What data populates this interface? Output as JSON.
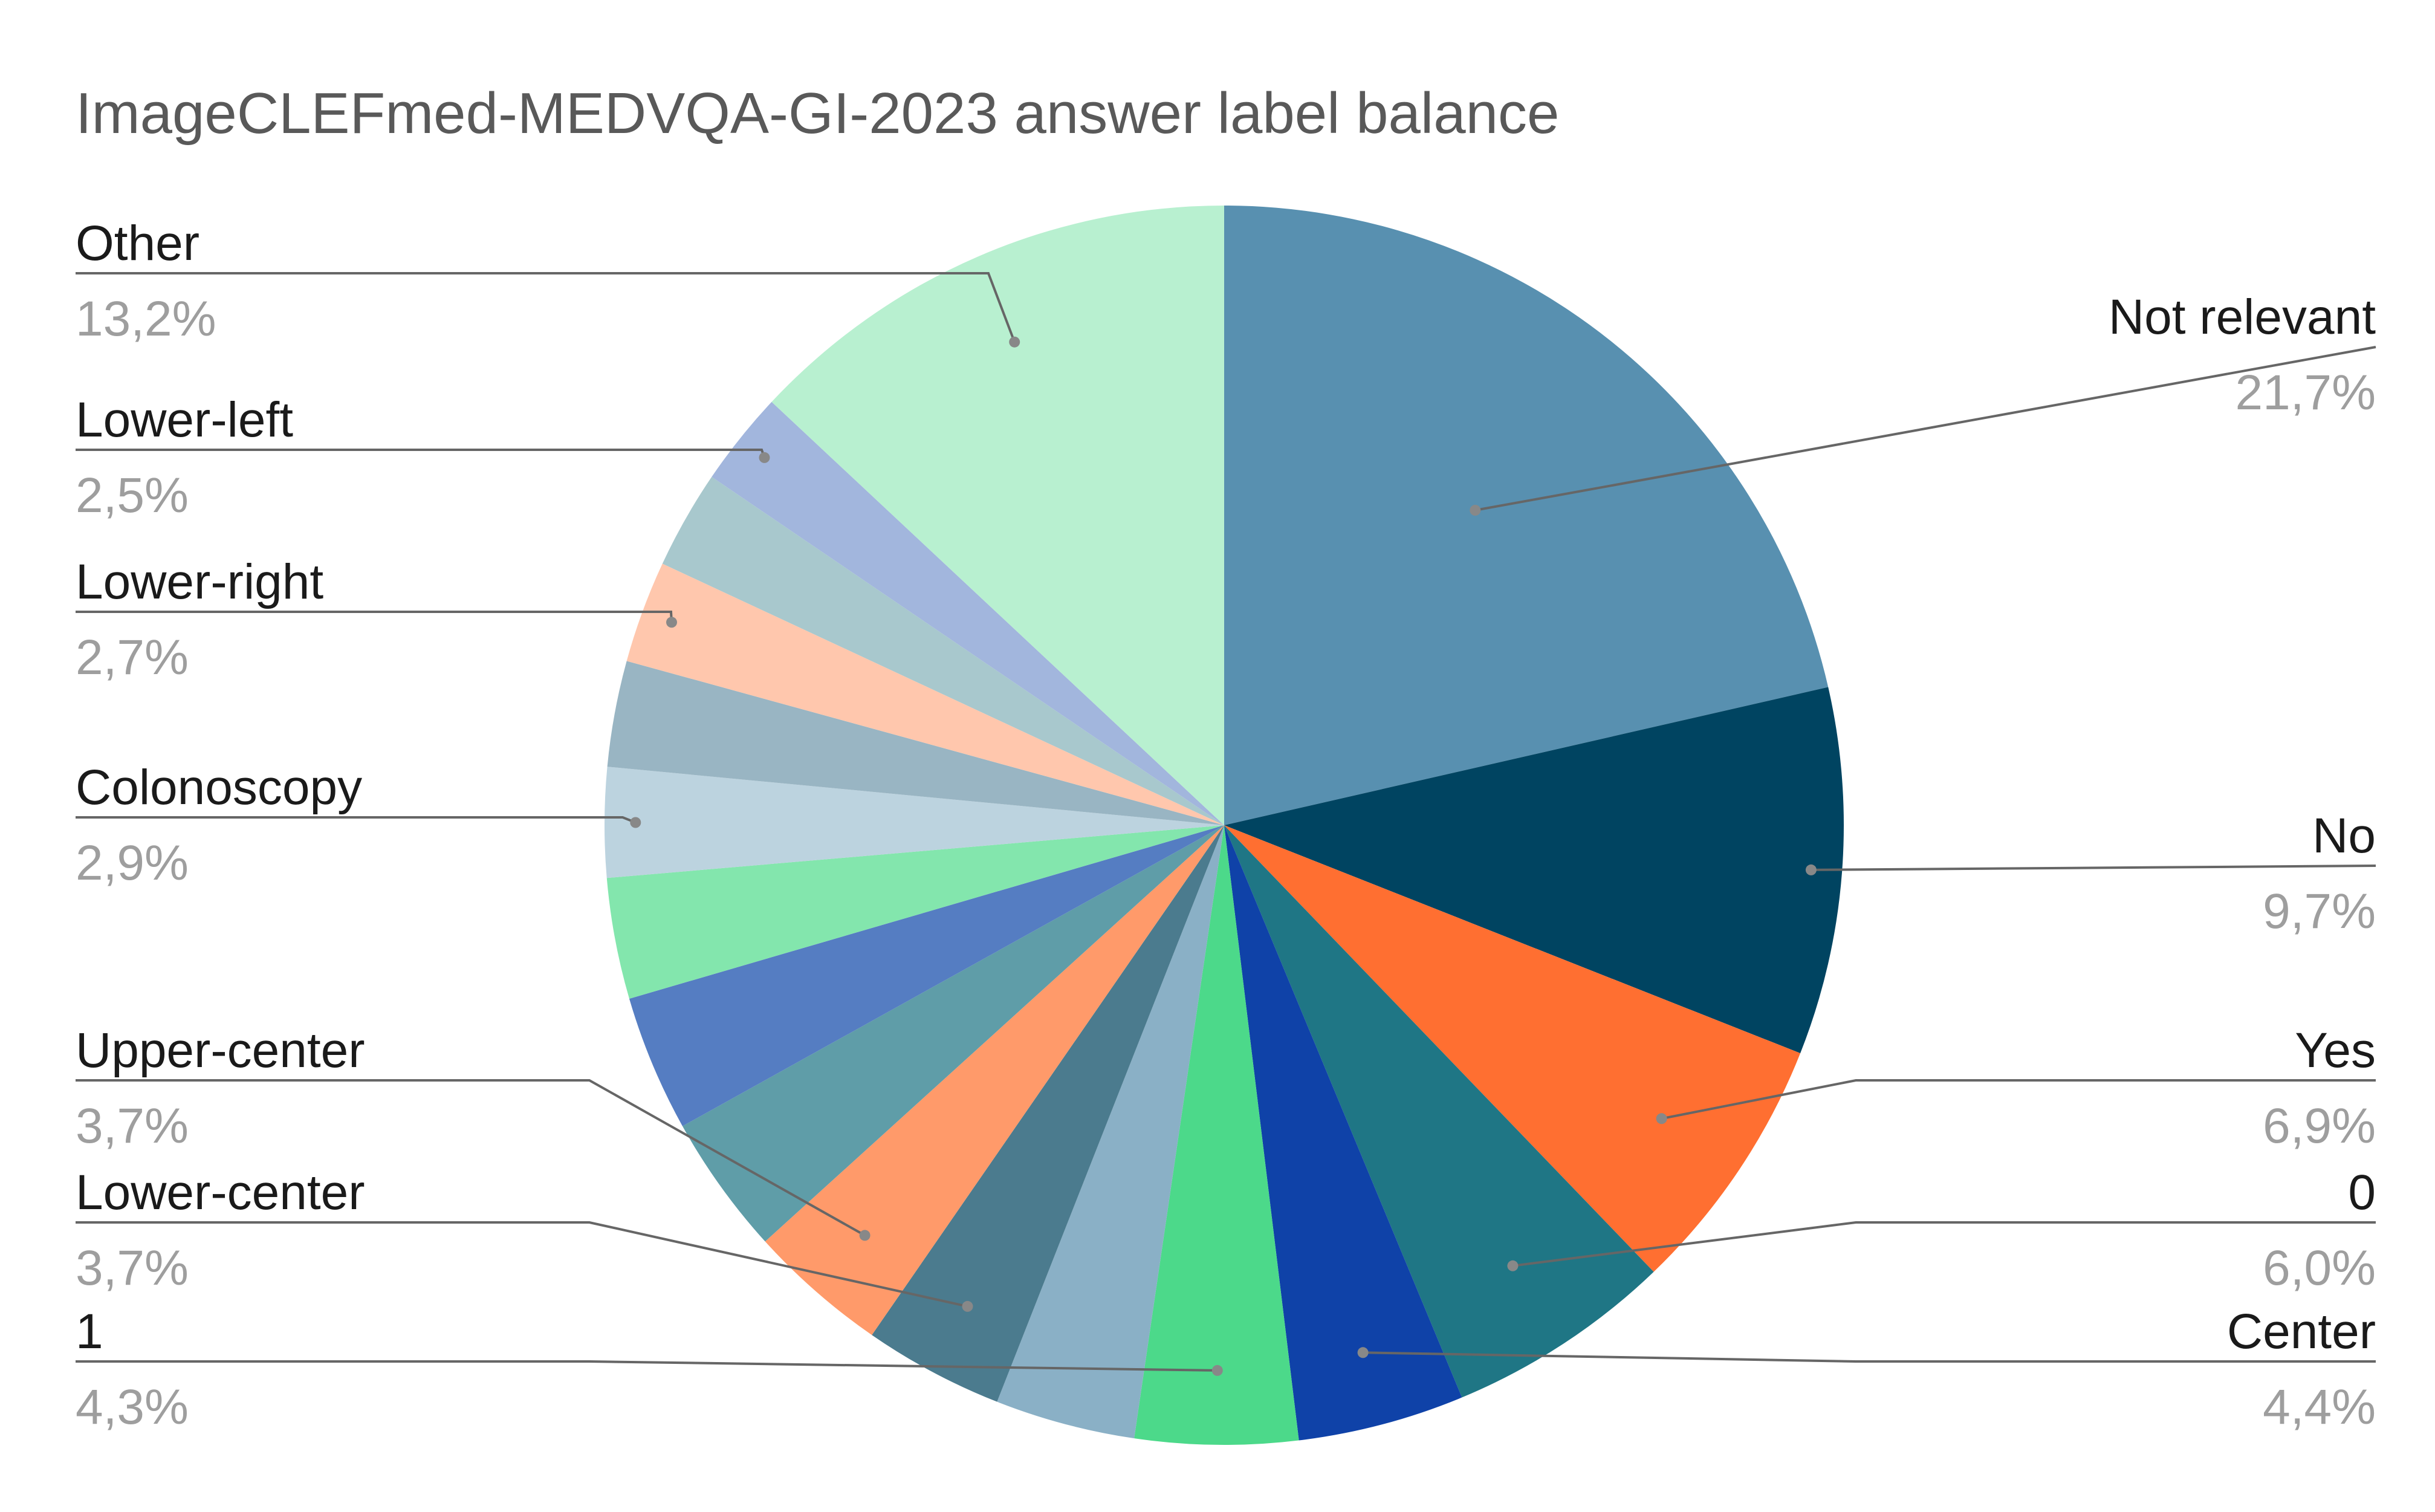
{
  "chart_data": {
    "type": "pie",
    "title": "ImageCLEFmed-MEDVQA-GI-2023 answer label balance",
    "slices": [
      {
        "label": "Not relevant",
        "value": 21.7,
        "pct_label": "21,7%",
        "color": "#5890b0",
        "labeled": true
      },
      {
        "label": "No",
        "value": 9.7,
        "pct_label": "9,7%",
        "color": "#004461",
        "labeled": true
      },
      {
        "label": "Yes",
        "value": 6.9,
        "pct_label": "6,9%",
        "color": "#ff6f31",
        "labeled": true
      },
      {
        "label": "0",
        "value": 6.0,
        "pct_label": "6,0%",
        "color": "#1f7685",
        "labeled": true
      },
      {
        "label": "Center",
        "value": 4.4,
        "pct_label": "4,4%",
        "color": "#0f42a8",
        "labeled": true
      },
      {
        "label": "1",
        "value": 4.3,
        "pct_label": "4,3%",
        "color": "#4cd98a",
        "labeled": true
      },
      {
        "label": "",
        "value": 3.7,
        "pct_label": "",
        "color": "#8ab0c6",
        "labeled": false
      },
      {
        "label": "Lower-center",
        "value": 3.7,
        "pct_label": "3,7%",
        "color": "#4b7b8e",
        "labeled": true
      },
      {
        "label": "Upper-center",
        "value": 3.7,
        "pct_label": "3,7%",
        "color": "#ff9a6a",
        "labeled": true
      },
      {
        "label": "",
        "value": 3.7,
        "pct_label": "",
        "color": "#5f9da8",
        "labeled": false
      },
      {
        "label": "",
        "value": 3.6,
        "pct_label": "",
        "color": "#557dc2",
        "labeled": false
      },
      {
        "label": "",
        "value": 3.2,
        "pct_label": "",
        "color": "#83e6ad",
        "labeled": false
      },
      {
        "label": "Colonoscopy",
        "value": 2.9,
        "pct_label": "2,9%",
        "color": "#bcd3df",
        "labeled": true
      },
      {
        "label": "",
        "value": 2.8,
        "pct_label": "",
        "color": "#99b5c3",
        "labeled": false
      },
      {
        "label": "Lower-right",
        "value": 2.7,
        "pct_label": "2,7%",
        "color": "#ffc7ad",
        "labeled": true
      },
      {
        "label": "",
        "value": 2.6,
        "pct_label": "",
        "color": "#a8c8cd",
        "labeled": false
      },
      {
        "label": "Lower-left",
        "value": 2.5,
        "pct_label": "2,5%",
        "color": "#a2b6dd",
        "labeled": true
      },
      {
        "label": "Other",
        "value": 13.2,
        "pct_label": "13,2%",
        "color": "#b8f0d0",
        "labeled": true
      }
    ],
    "start_angle_deg": 0,
    "direction": "clockwise",
    "legend": "none"
  }
}
